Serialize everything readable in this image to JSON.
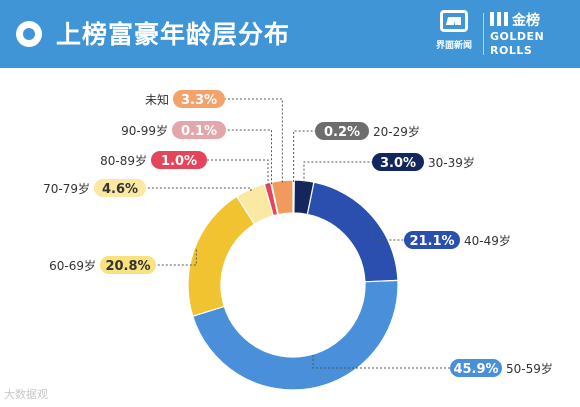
{
  "header": {
    "title": "上榜富豪年龄层分布",
    "logo_left_text": "界面新闻",
    "logo_right_cn": "金榜",
    "logo_right_en_1": "GOLDEN",
    "logo_right_en_2": "ROLLS"
  },
  "watermark": "大数据观",
  "colors": {
    "header_bg": "#3f95d6",
    "leader_line": "#555555"
  },
  "chart_data": {
    "type": "pie",
    "donut": true,
    "title": "上榜富豪年龄层分布",
    "unit": "%",
    "order": "clockwise-from-top",
    "slices": [
      {
        "label": "20-29岁",
        "value": 0.2,
        "display": "0.2%",
        "color": "#222222",
        "badge": "#6d6d6d"
      },
      {
        "label": "30-39岁",
        "value": 3.0,
        "display": "3.0%",
        "color": "#14265e",
        "badge": "#14265e"
      },
      {
        "label": "40-49岁",
        "value": 21.1,
        "display": "21.1%",
        "color": "#2a4fae",
        "badge": "#2a4fae"
      },
      {
        "label": "50-59岁",
        "value": 45.9,
        "display": "45.9%",
        "color": "#4a8fd9",
        "badge": "#4a8fd9"
      },
      {
        "label": "60-69岁",
        "value": 20.8,
        "display": "20.8%",
        "color": "#f1c330",
        "badge": "#f8e27e"
      },
      {
        "label": "70-79岁",
        "value": 4.6,
        "display": "4.6%",
        "color": "#fbe9a3",
        "badge": "#fbe9a3"
      },
      {
        "label": "80-89岁",
        "value": 1.0,
        "display": "1.0%",
        "color": "#e4455a",
        "badge": "#e4455a"
      },
      {
        "label": "90-99岁",
        "value": 0.1,
        "display": "0.1%",
        "color": "#d99aa0",
        "badge": "#e3a7a9"
      },
      {
        "label": "未知",
        "value": 3.3,
        "display": "3.3%",
        "color": "#f09a5e",
        "badge": "#f3a26a"
      }
    ]
  }
}
